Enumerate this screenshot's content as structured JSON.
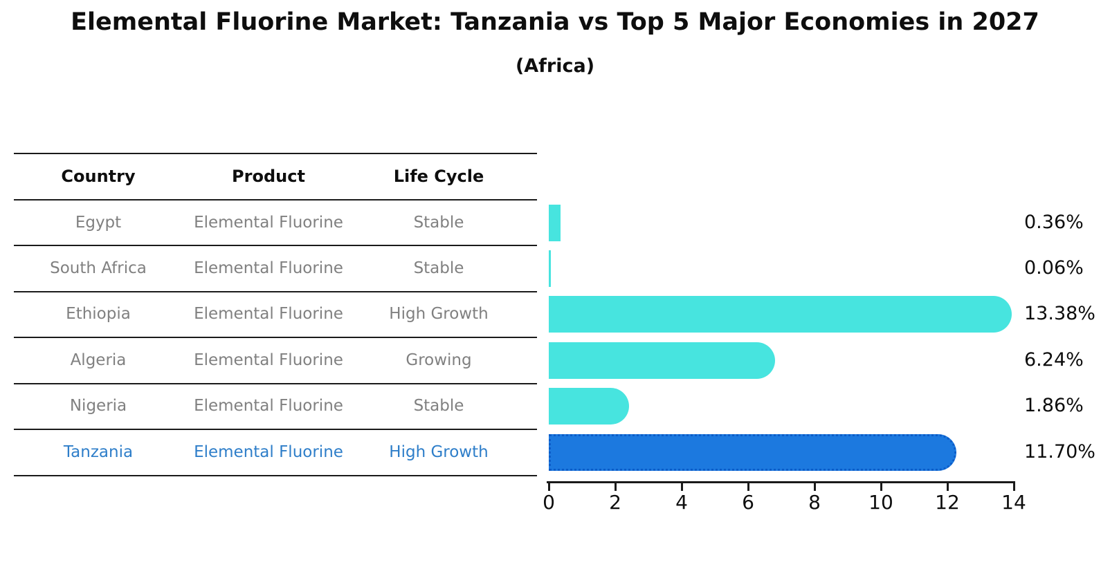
{
  "header": {
    "title": "Elemental Fluorine Market: Tanzania vs Top 5 Major Economies in 2027",
    "subtitle": "(Africa)"
  },
  "table": {
    "headers": [
      "Country",
      "Product",
      "Life Cycle"
    ],
    "rows": [
      {
        "country": "Egypt",
        "product": "Elemental Fluorine",
        "life_cycle": "Stable",
        "highlighted": false
      },
      {
        "country": "South Africa",
        "product": "Elemental Fluorine",
        "life_cycle": "Stable",
        "highlighted": false
      },
      {
        "country": "Ethiopia",
        "product": "Elemental Fluorine",
        "life_cycle": "High Growth",
        "highlighted": false
      },
      {
        "country": "Algeria",
        "product": "Elemental Fluorine",
        "life_cycle": "Growing",
        "highlighted": false
      },
      {
        "country": "Nigeria",
        "product": "Elemental Fluorine",
        "life_cycle": "Stable",
        "highlighted": false
      },
      {
        "country": "Tanzania",
        "product": "Elemental Fluorine",
        "life_cycle": "High Growth",
        "highlighted": true
      }
    ]
  },
  "chart_data": {
    "type": "bar",
    "orientation": "horizontal",
    "title": "Elemental Fluorine Market: Tanzania vs Top 5 Major Economies in 2027",
    "subtitle": "(Africa)",
    "categories": [
      "Egypt",
      "South Africa",
      "Ethiopia",
      "Algeria",
      "Nigeria",
      "Tanzania"
    ],
    "values": [
      0.36,
      0.06,
      13.38,
      6.24,
      1.86,
      11.7
    ],
    "value_labels": [
      "0.36%",
      "0.06%",
      "13.38%",
      "6.24%",
      "1.86%",
      "11.70%"
    ],
    "x_ticks": [
      0,
      2,
      4,
      6,
      8,
      10,
      12,
      14
    ],
    "xlim": [
      0,
      14
    ],
    "xlabel": "",
    "ylabel": "",
    "grid": false,
    "legend": "none",
    "bar_color": "#47e4df",
    "highlight_color": "#1c79df",
    "highlight_border_color": "#0c5cc8",
    "highlight_text_color": "#2e7ec9",
    "highlight_index": 5
  }
}
